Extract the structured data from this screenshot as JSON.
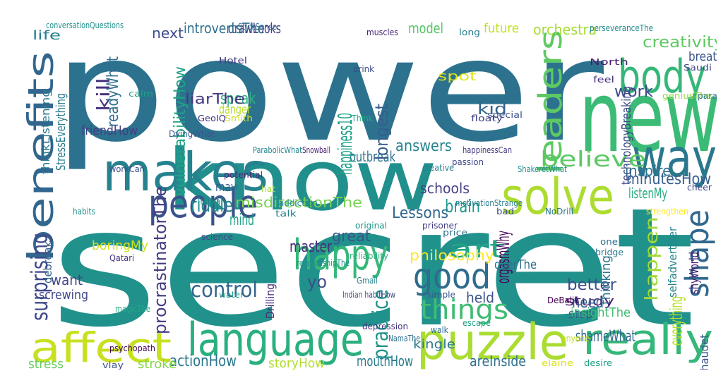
{
  "words": [
    {
      "text": "power",
      "color": "#2c728e"
    },
    {
      "text": "secret",
      "color": "#21918c"
    },
    {
      "text": "know",
      "color": "#21908d"
    },
    {
      "text": "new",
      "color": "#3bbb75"
    },
    {
      "text": "makes",
      "color": "#26828e"
    },
    {
      "text": "benefits",
      "color": "#31668e"
    },
    {
      "text": "leaders",
      "color": "#5ec962"
    },
    {
      "text": "way",
      "color": "#2a788e"
    },
    {
      "text": "body",
      "color": "#35b779"
    },
    {
      "text": "solve",
      "color": "#addc30"
    },
    {
      "text": "people",
      "color": "#3b528b"
    },
    {
      "text": "happy",
      "color": "#35b779"
    },
    {
      "text": "shape",
      "color": "#31688e"
    },
    {
      "text": "good",
      "color": "#2f6c8e"
    },
    {
      "text": "affect",
      "color": "#c8e020"
    },
    {
      "text": "language",
      "color": "#2ab07f"
    },
    {
      "text": "puzzle",
      "color": "#aadc32"
    },
    {
      "text": "really",
      "color": "#35b779"
    },
    {
      "text": "art",
      "color": "#22a785"
    },
    {
      "text": "believe",
      "color": "#5cc863"
    },
    {
      "text": "things",
      "color": "#3fbc73"
    },
    {
      "text": "control",
      "color": "#32658e"
    },
    {
      "text": "surprising",
      "color": "#3e4a89"
    },
    {
      "text": "practice",
      "color": "#20928c"
    },
    {
      "text": "procrastinatorThe",
      "color": "#443a83"
    },
    {
      "text": "vulnerabilityHow",
      "color": "#20a386"
    },
    {
      "text": "misdirectionThe",
      "color": "#7ad151"
    },
    {
      "text": "philosophy",
      "color": "#fde725"
    },
    {
      "text": "happen",
      "color": "#a0da39"
    },
    {
      "text": "creativity",
      "color": "#5ec962"
    },
    {
      "text": "minutesHow",
      "color": "#355f8d"
    },
    {
      "text": "riddle",
      "color": "#25848e"
    },
    {
      "text": "brain",
      "color": "#1f998a"
    },
    {
      "text": "outbreak",
      "color": "#2d708e"
    },
    {
      "text": "answers",
      "color": "#25838e"
    },
    {
      "text": "Lessons",
      "color": "#31688e"
    },
    {
      "text": "master",
      "color": "#472d7b"
    },
    {
      "text": "great",
      "color": "#38588c"
    },
    {
      "text": "schools",
      "color": "#433e85"
    },
    {
      "text": "better",
      "color": "#3c4f8a"
    },
    {
      "text": "study",
      "color": "#481f71"
    },
    {
      "text": "need",
      "color": "#35608d"
    },
    {
      "text": "work",
      "color": "#3e4989"
    },
    {
      "text": "kid",
      "color": "#33638d"
    },
    {
      "text": "longest",
      "color": "#365c8d"
    },
    {
      "text": "happiness10",
      "color": "#1fa088"
    },
    {
      "text": "speak",
      "color": "#2db27d"
    },
    {
      "text": "danger",
      "color": "#b5de2b"
    },
    {
      "text": "liarThe",
      "color": "#443983"
    },
    {
      "text": "kill",
      "color": "#46337f"
    },
    {
      "text": "readyWhat",
      "color": "#2e6e8e"
    },
    {
      "text": "next",
      "color": "#3e4c8a"
    },
    {
      "text": "drawLooks",
      "color": "#424086"
    },
    {
      "text": "introvertsThe",
      "color": "#2e6f8e"
    },
    {
      "text": "model",
      "color": "#56c667"
    },
    {
      "text": "future",
      "color": "#c5e021"
    },
    {
      "text": "orchestra",
      "color": "#a8db34"
    },
    {
      "text": "breath",
      "color": "#3a548c"
    },
    {
      "text": "life",
      "color": "#26818e"
    },
    {
      "text": "inspire",
      "color": "#2c718e"
    },
    {
      "text": "mind",
      "color": "#20a486"
    },
    {
      "text": "want",
      "color": "#404588"
    },
    {
      "text": "yo",
      "color": "#3d4d8a"
    },
    {
      "text": "shameWhat",
      "color": "#31678e"
    },
    {
      "text": "areInside",
      "color": "#2d708e"
    },
    {
      "text": "mouthHow",
      "color": "#287c8e"
    },
    {
      "text": "actionHow",
      "color": "#2a778e"
    },
    {
      "text": "stroke",
      "color": "#85d54a"
    },
    {
      "text": "stress",
      "color": "#67cc5c"
    },
    {
      "text": "storyHow",
      "color": "#b0dd2f"
    },
    {
      "text": "orgasmWhy",
      "color": "#46085c"
    },
    {
      "text": "listenMy",
      "color": "#25ac82"
    },
    {
      "text": "screwing",
      "color": "#404688"
    },
    {
      "text": "boringMy",
      "color": "#d0e11c"
    },
    {
      "text": "may",
      "color": "#34618d"
    },
    {
      "text": "friendHow",
      "color": "#433d84"
    },
    {
      "text": "spot",
      "color": "#e2e418"
    },
    {
      "text": "held",
      "color": "#3b528b"
    },
    {
      "text": "stop",
      "color": "#375a8c"
    },
    {
      "text": "everything",
      "color": "#b8de29"
    },
    {
      "text": "overThe",
      "color": "#2e6d8e"
    },
    {
      "text": "insightThe",
      "color": "#3fbc73"
    },
    {
      "text": "kingle",
      "color": "#297a8e"
    },
    {
      "text": "conversationQuestions",
      "color": "#21918c"
    },
    {
      "text": "StickSense",
      "color": "#31678e"
    },
    {
      "text": "muscles",
      "color": "#482475"
    },
    {
      "text": "long",
      "color": "#287d8e"
    },
    {
      "text": "perseveranceThe",
      "color": "#228c8d"
    },
    {
      "text": "Hotel",
      "color": "#44397e"
    },
    {
      "text": "drink",
      "color": "#3e4989"
    },
    {
      "text": "Saudi",
      "color": "#3f4788"
    },
    {
      "text": "North",
      "color": "#481b6d"
    },
    {
      "text": "feel",
      "color": "#472f7d"
    },
    {
      "text": "calm",
      "color": "#1fa287"
    },
    {
      "text": "StressEverything",
      "color": "#297b8e"
    },
    {
      "text": "technologyBreaking",
      "color": "#3e4a89"
    },
    {
      "text": "geniusThe",
      "color": "#95d840"
    },
    {
      "text": "paradox",
      "color": "#2a768e"
    },
    {
      "text": "special",
      "color": "#3b528b"
    },
    {
      "text": "Think",
      "color": "#22a884"
    },
    {
      "text": "floaty",
      "color": "#414487"
    },
    {
      "text": "Smith",
      "color": "#d2e21b"
    },
    {
      "text": "GeoIQ",
      "color": "#46327e"
    },
    {
      "text": "thinkListening",
      "color": "#297b8e"
    },
    {
      "text": "DyingWhat",
      "color": "#3a548c"
    },
    {
      "text": "ParabolicWhat",
      "color": "#24878e"
    },
    {
      "text": "Snowball",
      "color": "#481f70"
    },
    {
      "text": "happinessCan",
      "color": "#453781"
    },
    {
      "text": "passion",
      "color": "#3f4889"
    },
    {
      "text": "creative",
      "color": "#287d8e"
    },
    {
      "text": "ShakeretWhat",
      "color": "#238a8d"
    },
    {
      "text": "potential",
      "color": "#482878"
    },
    {
      "text": "workCan",
      "color": "#3c4f8a"
    },
    {
      "text": "hat",
      "color": "#a5db36"
    },
    {
      "text": "Iranian",
      "color": "#1f9e89"
    },
    {
      "text": "addiction",
      "color": "#228b8d"
    },
    {
      "text": "talk",
      "color": "#26828e"
    },
    {
      "text": "motivationStrange",
      "color": "#277f8e"
    },
    {
      "text": "bad",
      "color": "#3b518b"
    },
    {
      "text": "habits",
      "color": "#21918c"
    },
    {
      "text": "NoDrill",
      "color": "#2b748e"
    },
    {
      "text": "strengthen",
      "color": "#fde725"
    },
    {
      "text": "original",
      "color": "#1f968b"
    },
    {
      "text": "prisoner",
      "color": "#433e85"
    },
    {
      "text": "price",
      "color": "#2c718e"
    },
    {
      "text": "science",
      "color": "#3e4989"
    },
    {
      "text": "selfadvertiser",
      "color": "#24868e"
    },
    {
      "text": "bridge",
      "color": "#2a788e"
    },
    {
      "text": "one",
      "color": "#2e6e8e"
    },
    {
      "text": "Qatari",
      "color": "#463480"
    },
    {
      "text": "reliability",
      "color": "#2db27d"
    },
    {
      "text": "relationshipThe",
      "color": "#20938c"
    },
    {
      "text": "shyWorld",
      "color": "#482173"
    },
    {
      "text": "thinking",
      "color": "#2b758e"
    },
    {
      "text": "debreak",
      "color": "#33628d"
    },
    {
      "text": "water",
      "color": "#1f9a8a"
    },
    {
      "text": "Indian habitHow",
      "color": "#3d4d8a"
    },
    {
      "text": "simple",
      "color": "#3b528b"
    },
    {
      "text": "Gmail",
      "color": "#26828e"
    },
    {
      "text": "Drilling",
      "color": "#472a7a"
    },
    {
      "text": "DeBalik",
      "color": "#440154"
    },
    {
      "text": "magicThe",
      "color": "#22a884"
    },
    {
      "text": "depression",
      "color": "#46317e"
    },
    {
      "text": "escape",
      "color": "#1fa287"
    },
    {
      "text": "walk",
      "color": "#2d708e"
    },
    {
      "text": "NamaThe",
      "color": "#2e6f8e"
    },
    {
      "text": "anyone",
      "color": "#c2df23"
    },
    {
      "text": "psychopath",
      "color": "#440154"
    },
    {
      "text": "vlay",
      "color": "#3b528b"
    },
    {
      "text": "elaine",
      "color": "#d8e219"
    },
    {
      "text": "desire",
      "color": "#1fa188"
    },
    {
      "text": "chaudet",
      "color": "#3a538b"
    },
    {
      "text": "cheer",
      "color": "#3f4889"
    }
  ]
}
